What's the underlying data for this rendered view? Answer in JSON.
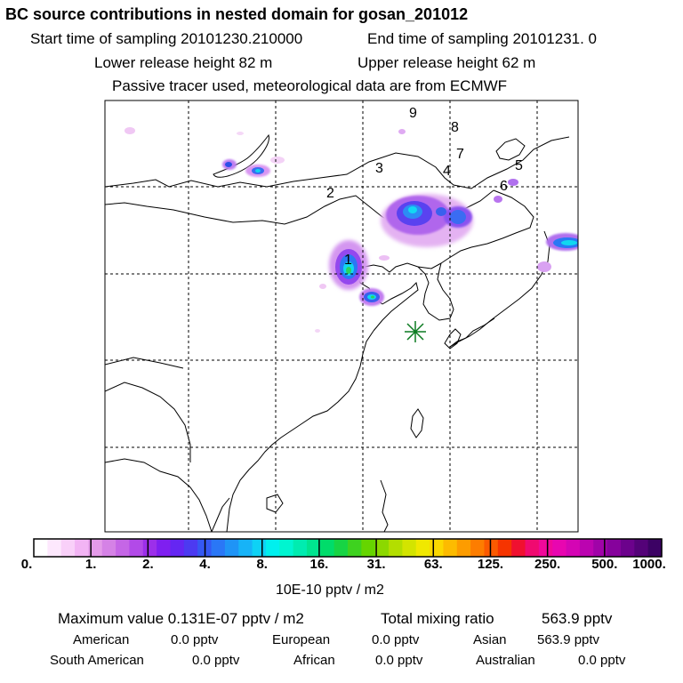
{
  "header": {
    "title": "BC  source contributions in nested domain for gosan_201012",
    "start_time": "Start time of sampling 20101230.210000",
    "end_time": "End time of sampling 20101231.     0",
    "lower_release": "Lower release height   82 m",
    "upper_release": "Upper release height   62 m",
    "tracer_note": "Passive tracer used, meteorological data are from ECMWF"
  },
  "map": {
    "receptor_marker": "asterisk-icon",
    "region_labels": [
      "1",
      "2",
      "3",
      "4",
      "5",
      "6",
      "7",
      "8",
      "9"
    ]
  },
  "colorbar": {
    "tick_labels": [
      "0.",
      "1.",
      "2.",
      "4.",
      "8.",
      "16.",
      "31.",
      "63.",
      "125.",
      "250.",
      "500.",
      "1000."
    ],
    "units": "10E-10 pptv / m2",
    "colors": [
      "#ffffff",
      "#fde8fd",
      "#f9d0f9",
      "#f2b4f4",
      "#e49be9",
      "#d582e6",
      "#c566e6",
      "#b24ae8",
      "#9c2fea",
      "#7f1ff0",
      "#6526f2",
      "#4c3af1",
      "#3558f3",
      "#2a77f6",
      "#1f94f6",
      "#17b3f7",
      "#0ed2f5",
      "#00f0ee",
      "#00f5d0",
      "#00ecb0",
      "#00e48f",
      "#00dc6a",
      "#17d444",
      "#3ed21f",
      "#66d500",
      "#8cd800",
      "#b3de00",
      "#d3e400",
      "#f0e800",
      "#fcd800",
      "#fdbb00",
      "#fd9c00",
      "#fd7d00",
      "#fb5a00",
      "#f63400",
      "#f01030",
      "#f00a70",
      "#f0089a",
      "#e806b0",
      "#d405b4",
      "#bb04b0",
      "#a003a8",
      "#86029c",
      "#6c028c",
      "#540278",
      "#3c0264"
    ]
  },
  "stats": {
    "max_label": "Maximum value  0.131E-07 pptv / m2",
    "total_label": "Total mixing ratio",
    "total_value": "563.9 pptv",
    "american_label": "American",
    "american_value": "0.0 pptv",
    "european_label": "European",
    "european_value": "0.0 pptv",
    "asian_label": "Asian",
    "asian_value": "563.9 pptv",
    "south_american_label": "South American",
    "south_american_value": "0.0 pptv",
    "african_label": "African",
    "african_value": "0.0 pptv",
    "australian_label": "Australian",
    "australian_value": "0.0 pptv"
  }
}
